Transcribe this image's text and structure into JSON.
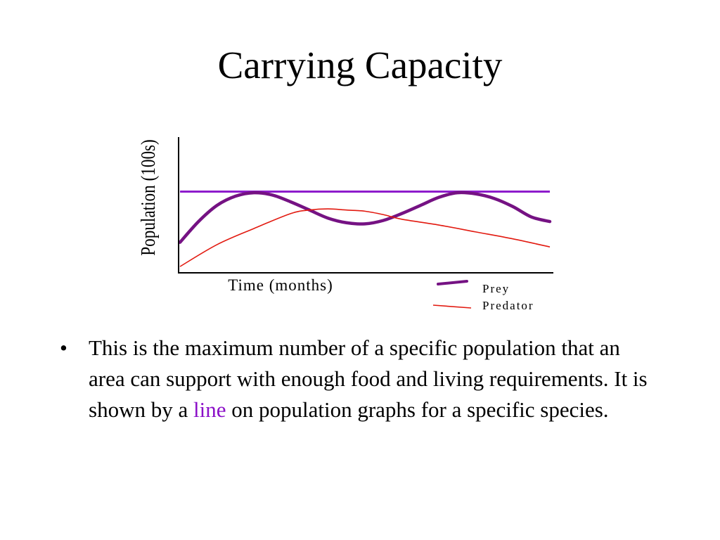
{
  "slide": {
    "title": "Carrying Capacity",
    "bullet_marker": "•",
    "bullet_text_before": "This is the maximum number of a specific population that an area can support with enough food and living requirements.  It is shown by a ",
    "bullet_highlight": "line",
    "bullet_text_after": " on population graphs for a specific species."
  },
  "colors": {
    "carrying_capacity": "#8e1ccc",
    "prey": "#751283",
    "predator": "#e21a10",
    "axis": "#000000",
    "highlight": "#8b10c8"
  },
  "chart_data": {
    "type": "line",
    "title": "",
    "xlabel": "Time (months)",
    "ylabel": "Population (100s)",
    "xlim": [
      0,
      100
    ],
    "ylim": [
      0,
      100
    ],
    "grid": false,
    "legend_position": "bottom-right",
    "legend": [
      {
        "label": "Prey",
        "series": "prey"
      },
      {
        "label": "Predator",
        "series": "predator"
      }
    ],
    "series": [
      {
        "id": "carrying_capacity",
        "values": [
          [
            0,
            68
          ],
          [
            100,
            68
          ]
        ]
      },
      {
        "id": "prey",
        "values": [
          [
            0,
            24
          ],
          [
            5,
            42
          ],
          [
            10,
            56
          ],
          [
            15,
            64
          ],
          [
            20,
            67
          ],
          [
            25,
            65
          ],
          [
            30,
            59
          ],
          [
            35,
            52
          ],
          [
            40,
            45
          ],
          [
            45,
            41
          ],
          [
            50,
            40
          ],
          [
            55,
            43
          ],
          [
            60,
            49
          ],
          [
            65,
            56
          ],
          [
            70,
            63
          ],
          [
            75,
            67
          ],
          [
            80,
            66
          ],
          [
            85,
            62
          ],
          [
            90,
            55
          ],
          [
            95,
            46
          ],
          [
            100,
            42
          ]
        ]
      },
      {
        "id": "predator",
        "values": [
          [
            0,
            3
          ],
          [
            10,
            22
          ],
          [
            20,
            36
          ],
          [
            30,
            49
          ],
          [
            35,
            52
          ],
          [
            40,
            53
          ],
          [
            45,
            52
          ],
          [
            50,
            51
          ],
          [
            55,
            48
          ],
          [
            60,
            44
          ],
          [
            70,
            39
          ],
          [
            80,
            33
          ],
          [
            90,
            27
          ],
          [
            100,
            20
          ]
        ]
      }
    ]
  }
}
